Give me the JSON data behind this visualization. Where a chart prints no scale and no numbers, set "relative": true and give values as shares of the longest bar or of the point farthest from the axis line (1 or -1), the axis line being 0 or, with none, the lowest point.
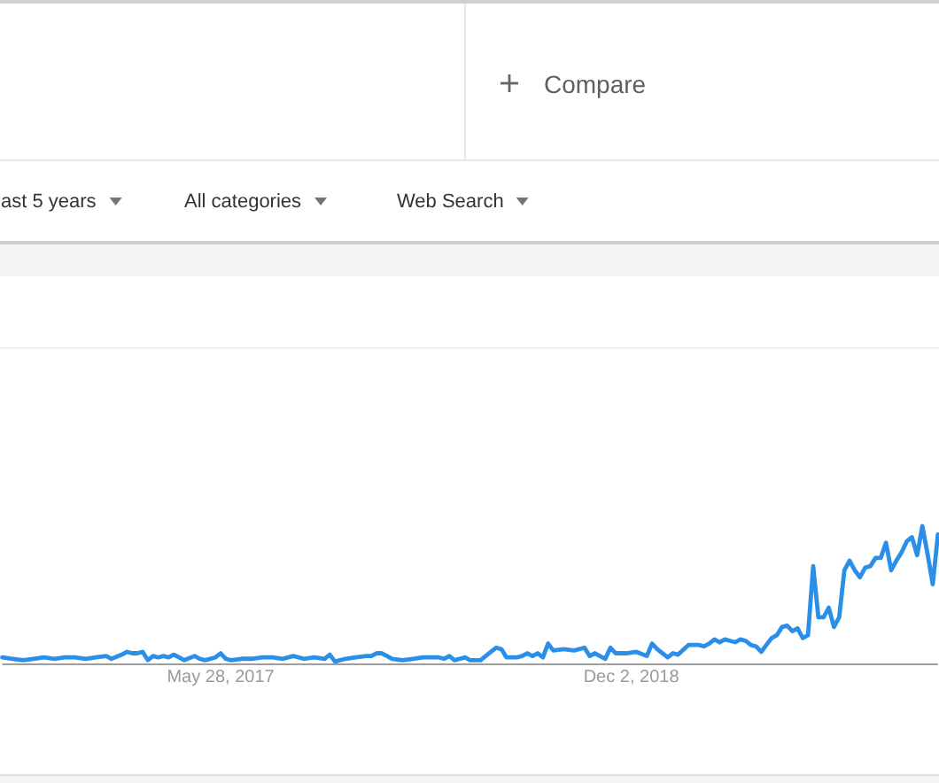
{
  "chart_data": {
    "type": "line",
    "relative": true,
    "color": "#2a8fe8",
    "xlim": [
      "2016-08-07",
      "2020-01-19"
    ],
    "xticks": [
      {
        "value": "2017-05-28",
        "label": "May 28, 2017"
      },
      {
        "value": "2018-12-02",
        "label": "Dec 2, 2018"
      }
    ],
    "annotations": [
      "Compare",
      "ast 5 years",
      "All categories",
      "Web Search"
    ],
    "x": [
      "2016-08-07",
      "2016-08-21",
      "2016-09-04",
      "2016-09-18",
      "2016-10-02",
      "2016-10-16",
      "2016-10-30",
      "2016-11-13",
      "2016-11-27",
      "2016-12-11",
      "2016-12-25",
      "2017-01-01",
      "2017-01-15",
      "2017-01-22",
      "2017-01-29",
      "2017-02-05",
      "2017-02-12",
      "2017-02-19",
      "2017-02-26",
      "2017-03-05",
      "2017-03-12",
      "2017-03-19",
      "2017-03-26",
      "2017-04-02",
      "2017-04-09",
      "2017-04-23",
      "2017-04-30",
      "2017-05-07",
      "2017-05-21",
      "2017-05-28",
      "2017-06-04",
      "2017-06-11",
      "2017-06-25",
      "2017-07-09",
      "2017-07-23",
      "2017-08-06",
      "2017-08-20",
      "2017-09-03",
      "2017-09-17",
      "2017-10-01",
      "2017-10-15",
      "2017-10-22",
      "2017-10-29",
      "2017-11-12",
      "2017-11-26",
      "2017-12-10",
      "2017-12-17",
      "2017-12-24",
      "2017-12-31",
      "2018-01-07",
      "2018-01-14",
      "2018-01-28",
      "2018-02-11",
      "2018-02-25",
      "2018-03-11",
      "2018-03-18",
      "2018-03-25",
      "2018-04-01",
      "2018-04-08",
      "2018-04-22",
      "2018-04-29",
      "2018-05-13",
      "2018-05-27",
      "2018-06-03",
      "2018-06-10",
      "2018-06-17",
      "2018-07-01",
      "2018-07-08",
      "2018-07-15",
      "2018-07-22",
      "2018-07-29",
      "2018-08-05",
      "2018-08-12",
      "2018-08-19",
      "2018-09-02",
      "2018-09-16",
      "2018-09-30",
      "2018-10-07",
      "2018-10-14",
      "2018-10-28",
      "2018-11-04",
      "2018-11-11",
      "2018-11-25",
      "2018-12-09",
      "2018-12-23",
      "2018-12-30",
      "2019-01-06",
      "2019-01-20",
      "2019-01-27",
      "2019-02-03",
      "2019-02-17",
      "2019-03-03",
      "2019-03-10",
      "2019-03-17",
      "2019-03-24",
      "2019-03-31",
      "2019-04-07",
      "2019-04-14",
      "2019-04-21",
      "2019-04-28",
      "2019-05-05",
      "2019-05-12",
      "2019-05-19",
      "2019-05-26",
      "2019-06-02",
      "2019-06-09",
      "2019-06-16",
      "2019-06-23",
      "2019-06-30",
      "2019-07-07",
      "2019-07-14",
      "2019-07-21",
      "2019-07-28",
      "2019-08-04",
      "2019-08-11",
      "2019-08-18",
      "2019-08-25",
      "2019-09-01",
      "2019-09-08",
      "2019-09-15",
      "2019-09-22",
      "2019-09-29",
      "2019-10-06",
      "2019-10-13",
      "2019-10-20",
      "2019-10-27",
      "2019-11-03",
      "2019-11-10",
      "2019-11-17",
      "2019-11-24",
      "2019-12-01",
      "2019-12-08",
      "2019-12-15",
      "2019-12-22",
      "2019-12-29",
      "2020-01-05",
      "2020-01-12",
      "2020-01-19"
    ],
    "values": [
      0.05,
      0.04,
      0.03,
      0.04,
      0.05,
      0.04,
      0.05,
      0.05,
      0.04,
      0.05,
      0.06,
      0.04,
      0.07,
      0.09,
      0.08,
      0.08,
      0.09,
      0.03,
      0.06,
      0.05,
      0.06,
      0.05,
      0.07,
      0.05,
      0.03,
      0.06,
      0.04,
      0.03,
      0.05,
      0.08,
      0.04,
      0.03,
      0.04,
      0.04,
      0.05,
      0.05,
      0.04,
      0.06,
      0.04,
      0.05,
      0.04,
      0.07,
      0.02,
      0.04,
      0.05,
      0.06,
      0.06,
      0.08,
      0.08,
      0.06,
      0.04,
      0.03,
      0.04,
      0.05,
      0.05,
      0.05,
      0.04,
      0.06,
      0.03,
      0.05,
      0.03,
      0.03,
      0.09,
      0.12,
      0.11,
      0.05,
      0.05,
      0.06,
      0.08,
      0.06,
      0.08,
      0.05,
      0.15,
      0.1,
      0.11,
      0.1,
      0.12,
      0.06,
      0.08,
      0.04,
      0.12,
      0.08,
      0.08,
      0.09,
      0.06,
      0.15,
      0.11,
      0.05,
      0.08,
      0.07,
      0.14,
      0.14,
      0.13,
      0.15,
      0.18,
      0.16,
      0.18,
      0.17,
      0.16,
      0.18,
      0.17,
      0.14,
      0.13,
      0.09,
      0.14,
      0.19,
      0.21,
      0.27,
      0.28,
      0.24,
      0.26,
      0.19,
      0.21,
      0.71,
      0.34,
      0.34,
      0.41,
      0.27,
      0.34,
      0.68,
      0.75,
      0.68,
      0.63,
      0.7,
      0.71,
      0.77,
      0.77,
      0.88,
      0.68,
      0.75,
      0.81,
      0.89,
      0.92,
      0.79,
      1,
      0.8,
      0.58,
      0.94
    ]
  }
}
